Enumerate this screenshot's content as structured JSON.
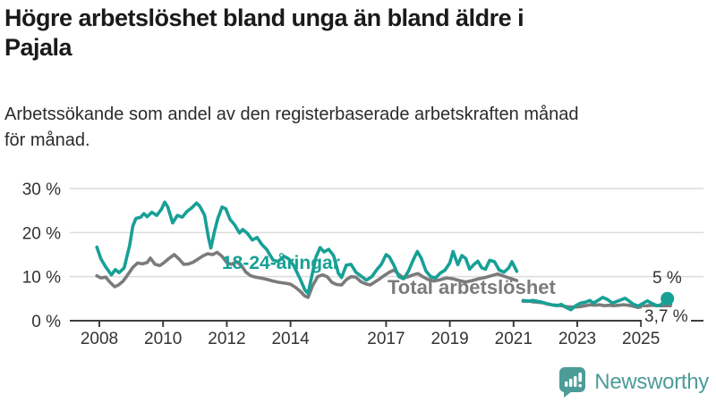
{
  "header": {
    "title_lines": [
      "Högre arbetslöshet bland unga än bland äldre i",
      "Pajala"
    ],
    "subtitle_lines": [
      "Arbetssökande som andel av den registerbaserade arbetskraften månad",
      "för månad."
    ]
  },
  "chart_data": {
    "type": "line",
    "title": "Högre arbetslöshet bland unga än bland äldre i Pajala",
    "subtitle": "Arbetssökande som andel av den registerbaserade arbetskraften månad för månad.",
    "unit": "%",
    "xlim": [
      2007.9,
      2026.1
    ],
    "ylim": [
      0,
      30
    ],
    "grid": true,
    "legend_position": "inline-labels",
    "colors": {
      "youth": "#17a096",
      "total": "#7b7b7b",
      "grid": "#dcdcdc",
      "axis": "#3d3d3d",
      "tick_text": "#333333"
    },
    "y_ticks": [
      {
        "value": 0,
        "label": "0 %"
      },
      {
        "value": 10,
        "label": "10 %"
      },
      {
        "value": 20,
        "label": "20 %"
      },
      {
        "value": 30,
        "label": "30 %"
      }
    ],
    "x_ticks": [
      {
        "value": 2008,
        "label": "2008"
      },
      {
        "value": 2010,
        "label": "2010"
      },
      {
        "value": 2012,
        "label": "2012"
      },
      {
        "value": 2014,
        "label": "2014"
      },
      {
        "value": 2017,
        "label": "2017"
      },
      {
        "value": 2019,
        "label": "2019"
      },
      {
        "value": 2021,
        "label": "2021"
      },
      {
        "value": 2023,
        "label": "2023"
      },
      {
        "value": 2025,
        "label": "2025"
      }
    ],
    "series": [
      {
        "name": "Total arbetslöshet",
        "color": "#7b7b7b",
        "end_label": "3,7 %",
        "end_value": 3.7,
        "dot_radius": 5.5,
        "segments": [
          [
            [
              2007.92,
              10.2
            ],
            [
              2008.05,
              9.7
            ],
            [
              2008.2,
              9.9
            ],
            [
              2008.35,
              8.6
            ],
            [
              2008.48,
              7.7
            ],
            [
              2008.6,
              8.1
            ],
            [
              2008.75,
              9.0
            ],
            [
              2008.9,
              10.5
            ],
            [
              2009.05,
              12.1
            ],
            [
              2009.2,
              13.1
            ],
            [
              2009.35,
              12.9
            ],
            [
              2009.5,
              13.2
            ],
            [
              2009.6,
              14.2
            ],
            [
              2009.75,
              12.8
            ],
            [
              2009.9,
              12.5
            ],
            [
              2010.05,
              13.3
            ],
            [
              2010.2,
              14.2
            ],
            [
              2010.35,
              15.0
            ],
            [
              2010.5,
              14.0
            ],
            [
              2010.65,
              12.8
            ],
            [
              2010.8,
              12.9
            ],
            [
              2010.95,
              13.3
            ],
            [
              2011.1,
              14.0
            ],
            [
              2011.25,
              14.7
            ],
            [
              2011.4,
              15.2
            ],
            [
              2011.55,
              15.0
            ],
            [
              2011.7,
              15.5
            ],
            [
              2011.85,
              14.6
            ],
            [
              2012.0,
              13.2
            ],
            [
              2012.15,
              12.8
            ],
            [
              2012.3,
              13.4
            ],
            [
              2012.45,
              12.6
            ],
            [
              2012.6,
              11.0
            ],
            [
              2012.75,
              10.2
            ],
            [
              2012.9,
              9.9
            ],
            [
              2013.05,
              9.7
            ],
            [
              2013.25,
              9.4
            ],
            [
              2013.45,
              9.0
            ],
            [
              2013.65,
              8.7
            ],
            [
              2013.85,
              8.5
            ],
            [
              2014.0,
              8.3
            ],
            [
              2014.15,
              7.6
            ],
            [
              2014.3,
              6.7
            ],
            [
              2014.45,
              5.6
            ],
            [
              2014.55,
              5.3
            ],
            [
              2014.7,
              8.0
            ],
            [
              2014.85,
              10.0
            ],
            [
              2015.0,
              10.4
            ],
            [
              2015.15,
              10.0
            ],
            [
              2015.3,
              8.7
            ],
            [
              2015.45,
              8.2
            ],
            [
              2015.6,
              8.1
            ],
            [
              2015.75,
              9.3
            ],
            [
              2015.9,
              10.0
            ],
            [
              2016.05,
              9.9
            ],
            [
              2016.2,
              8.9
            ],
            [
              2016.35,
              8.4
            ],
            [
              2016.5,
              8.1
            ],
            [
              2016.65,
              8.8
            ],
            [
              2016.8,
              9.5
            ],
            [
              2016.95,
              10.3
            ],
            [
              2017.1,
              11.0
            ],
            [
              2017.25,
              11.5
            ],
            [
              2017.4,
              10.5
            ],
            [
              2017.55,
              9.7
            ],
            [
              2017.7,
              10.0
            ],
            [
              2017.85,
              10.4
            ],
            [
              2018.0,
              10.7
            ],
            [
              2018.15,
              10.0
            ],
            [
              2018.3,
              9.4
            ],
            [
              2018.5,
              9.0
            ],
            [
              2018.7,
              9.3
            ],
            [
              2018.9,
              9.7
            ],
            [
              2019.1,
              9.5
            ],
            [
              2019.3,
              9.1
            ],
            [
              2019.5,
              8.8
            ],
            [
              2019.7,
              9.1
            ],
            [
              2019.9,
              9.5
            ],
            [
              2020.1,
              9.8
            ],
            [
              2020.3,
              10.2
            ],
            [
              2020.5,
              10.6
            ],
            [
              2020.7,
              10.1
            ],
            [
              2020.9,
              9.6
            ],
            [
              2021.1,
              9.1
            ]
          ],
          [
            [
              2021.3,
              4.4
            ],
            [
              2021.45,
              4.5
            ],
            [
              2021.6,
              4.3
            ],
            [
              2021.75,
              4.2
            ],
            [
              2021.9,
              4.1
            ],
            [
              2022.05,
              3.8
            ],
            [
              2022.2,
              3.6
            ],
            [
              2022.35,
              3.5
            ],
            [
              2022.5,
              3.4
            ],
            [
              2022.65,
              3.2
            ],
            [
              2022.8,
              3.1
            ],
            [
              2022.95,
              3.1
            ],
            [
              2023.1,
              3.2
            ],
            [
              2023.25,
              3.4
            ],
            [
              2023.4,
              3.6
            ],
            [
              2023.55,
              3.5
            ],
            [
              2023.7,
              3.6
            ],
            [
              2023.85,
              3.4
            ],
            [
              2024.0,
              3.5
            ],
            [
              2024.15,
              3.4
            ],
            [
              2024.3,
              3.5
            ],
            [
              2024.45,
              3.6
            ],
            [
              2024.6,
              3.5
            ],
            [
              2024.75,
              3.3
            ],
            [
              2024.9,
              3.0
            ],
            [
              2025.05,
              3.2
            ],
            [
              2025.2,
              3.4
            ],
            [
              2025.35,
              3.5
            ],
            [
              2025.5,
              3.4
            ],
            [
              2025.65,
              3.2
            ],
            [
              2025.83,
              3.7
            ]
          ]
        ]
      },
      {
        "name": "18-24-åringar",
        "color": "#17a096",
        "end_label": "5 %",
        "end_value": 5,
        "dot_radius": 7.5,
        "segments": [
          [
            [
              2007.92,
              16.7
            ],
            [
              2008.05,
              14.0
            ],
            [
              2008.2,
              12.2
            ],
            [
              2008.38,
              10.4
            ],
            [
              2008.5,
              11.6
            ],
            [
              2008.62,
              10.9
            ],
            [
              2008.78,
              12.0
            ],
            [
              2008.88,
              15.0
            ],
            [
              2008.95,
              17.0
            ],
            [
              2009.05,
              21.5
            ],
            [
              2009.15,
              23.2
            ],
            [
              2009.3,
              23.5
            ],
            [
              2009.4,
              24.3
            ],
            [
              2009.5,
              23.6
            ],
            [
              2009.65,
              24.6
            ],
            [
              2009.8,
              23.9
            ],
            [
              2009.95,
              25.3
            ],
            [
              2010.05,
              26.9
            ],
            [
              2010.15,
              25.8
            ],
            [
              2010.3,
              22.2
            ],
            [
              2010.45,
              23.9
            ],
            [
              2010.6,
              23.5
            ],
            [
              2010.75,
              24.8
            ],
            [
              2010.9,
              25.6
            ],
            [
              2011.05,
              26.7
            ],
            [
              2011.15,
              26.0
            ],
            [
              2011.3,
              24.0
            ],
            [
              2011.42,
              19.0
            ],
            [
              2011.5,
              16.5
            ],
            [
              2011.62,
              20.5
            ],
            [
              2011.72,
              23.2
            ],
            [
              2011.85,
              25.8
            ],
            [
              2011.97,
              25.4
            ],
            [
              2012.1,
              23.0
            ],
            [
              2012.25,
              21.7
            ],
            [
              2012.4,
              19.9
            ],
            [
              2012.5,
              20.7
            ],
            [
              2012.65,
              19.8
            ],
            [
              2012.8,
              18.3
            ],
            [
              2012.95,
              18.9
            ],
            [
              2013.1,
              17.3
            ],
            [
              2013.25,
              16.2
            ],
            [
              2013.45,
              13.8
            ],
            [
              2013.6,
              13.4
            ],
            [
              2013.8,
              14.6
            ],
            [
              2013.95,
              14.0
            ],
            [
              2014.1,
              12.5
            ],
            [
              2014.3,
              9.5
            ],
            [
              2014.45,
              7.0
            ],
            [
              2014.55,
              6.2
            ],
            [
              2014.68,
              10.5
            ],
            [
              2014.8,
              14.5
            ],
            [
              2014.93,
              16.6
            ],
            [
              2015.05,
              15.6
            ],
            [
              2015.2,
              16.2
            ],
            [
              2015.35,
              14.8
            ],
            [
              2015.5,
              10.8
            ],
            [
              2015.6,
              9.8
            ],
            [
              2015.75,
              12.6
            ],
            [
              2015.9,
              12.8
            ],
            [
              2016.05,
              11.0
            ],
            [
              2016.2,
              10.2
            ],
            [
              2016.38,
              9.2
            ],
            [
              2016.55,
              10.0
            ],
            [
              2016.7,
              11.5
            ],
            [
              2016.85,
              12.8
            ],
            [
              2017.0,
              15.0
            ],
            [
              2017.1,
              14.5
            ],
            [
              2017.25,
              12.5
            ],
            [
              2017.4,
              10.0
            ],
            [
              2017.55,
              9.5
            ],
            [
              2017.7,
              11.2
            ],
            [
              2017.85,
              13.8
            ],
            [
              2017.98,
              15.7
            ],
            [
              2018.1,
              14.2
            ],
            [
              2018.25,
              11.3
            ],
            [
              2018.4,
              10.0
            ],
            [
              2018.55,
              9.7
            ],
            [
              2018.7,
              10.8
            ],
            [
              2018.85,
              11.5
            ],
            [
              2019.0,
              13.1
            ],
            [
              2019.1,
              15.7
            ],
            [
              2019.25,
              12.7
            ],
            [
              2019.38,
              14.8
            ],
            [
              2019.5,
              14.1
            ],
            [
              2019.62,
              11.7
            ],
            [
              2019.75,
              12.7
            ],
            [
              2019.88,
              13.5
            ],
            [
              2020.0,
              12.0
            ],
            [
              2020.12,
              11.7
            ],
            [
              2020.25,
              13.7
            ],
            [
              2020.4,
              13.4
            ],
            [
              2020.55,
              11.5
            ],
            [
              2020.7,
              11.0
            ],
            [
              2020.85,
              12.0
            ],
            [
              2020.95,
              13.4
            ],
            [
              2021.1,
              11.2
            ]
          ],
          [
            [
              2021.3,
              4.6
            ],
            [
              2021.45,
              4.4
            ],
            [
              2021.6,
              4.6
            ],
            [
              2021.75,
              4.4
            ],
            [
              2021.9,
              4.2
            ],
            [
              2022.05,
              3.9
            ],
            [
              2022.2,
              3.6
            ],
            [
              2022.35,
              3.4
            ],
            [
              2022.5,
              3.7
            ],
            [
              2022.65,
              3.0
            ],
            [
              2022.8,
              2.5
            ],
            [
              2022.95,
              3.4
            ],
            [
              2023.1,
              4.0
            ],
            [
              2023.25,
              4.2
            ],
            [
              2023.4,
              4.6
            ],
            [
              2023.5,
              4.0
            ],
            [
              2023.65,
              4.6
            ],
            [
              2023.8,
              5.3
            ],
            [
              2023.95,
              4.8
            ],
            [
              2024.1,
              4.0
            ],
            [
              2024.25,
              4.4
            ],
            [
              2024.4,
              4.8
            ],
            [
              2024.5,
              5.1
            ],
            [
              2024.62,
              4.5
            ],
            [
              2024.75,
              3.8
            ],
            [
              2024.9,
              3.3
            ],
            [
              2025.05,
              3.9
            ],
            [
              2025.2,
              4.5
            ],
            [
              2025.35,
              3.9
            ],
            [
              2025.5,
              3.4
            ],
            [
              2025.62,
              3.6
            ],
            [
              2025.75,
              4.4
            ],
            [
              2025.83,
              5.0
            ]
          ]
        ]
      }
    ]
  },
  "footer": {
    "brand": "Newsworthy",
    "brand_color": "#4d9c99",
    "logo_icon": "bar-chart-speech-bubble-icon"
  }
}
